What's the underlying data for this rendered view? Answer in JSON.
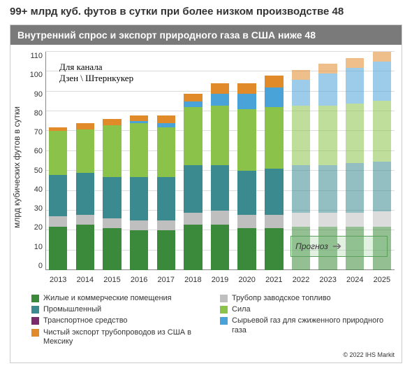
{
  "page_title": "99+ млрд куб. футов в сутки при более низком производстве 48",
  "chart": {
    "type": "stacked-bar",
    "title": "Внутренний спрос и экспорт природного газа в США ниже 48",
    "y_label": "млрд кубических футов в сутки",
    "ylim": [
      0,
      110
    ],
    "ytick_step": 10,
    "yticks": [
      0,
      10,
      20,
      30,
      40,
      50,
      60,
      70,
      80,
      90,
      100,
      110
    ],
    "categories": [
      "2013",
      "2014",
      "2015",
      "2016",
      "2017",
      "2018",
      "2019",
      "2020",
      "2021",
      "2022",
      "2023",
      "2024",
      "2025"
    ],
    "forecast_start_index": 9,
    "forecast_label": "Прогноз",
    "forecast_opacity": 0.55,
    "series": [
      {
        "key": "residential_commercial",
        "label": "Жилые и коммерческие помещения",
        "color": "#3b8a3b"
      },
      {
        "key": "industrial",
        "label": "Промышленный",
        "color": "#3a8a8f"
      },
      {
        "key": "transport",
        "label": "Транспортное средство",
        "color": "#7a2b6b"
      },
      {
        "key": "pipeline_export",
        "label": "Чистый экспорт трубопроводов из США в Мексику",
        "color": "#e08a2a"
      },
      {
        "key": "pipeline_fuel",
        "label": "Трубопр заводское топливо",
        "color": "#bfbfbf"
      },
      {
        "key": "power",
        "label": "Сила",
        "color": "#8ac24a"
      },
      {
        "key": "lng_feedgas",
        "label": "Сырьевой газ для сжиженного природного газа",
        "color": "#4aa3d8"
      }
    ],
    "stack_order": [
      "residential_commercial",
      "pipeline_fuel",
      "industrial",
      "transport",
      "power",
      "lng_feedgas",
      "pipeline_export"
    ],
    "data": {
      "residential_commercial": [
        22,
        23,
        21,
        20,
        20,
        23,
        23,
        21,
        21,
        22,
        22,
        22,
        22
      ],
      "pipeline_fuel": [
        5,
        5,
        5,
        5,
        5,
        6,
        7,
        7,
        7,
        7,
        7,
        7,
        8
      ],
      "industrial": [
        21,
        21,
        21,
        22,
        22,
        24,
        23,
        22,
        23,
        24,
        24,
        25,
        25
      ],
      "transport": [
        0,
        0,
        0,
        0,
        0,
        0,
        0,
        0,
        0,
        0,
        0,
        0,
        0
      ],
      "power": [
        22,
        22,
        26,
        27,
        25,
        29,
        30,
        31,
        31,
        30,
        30,
        30,
        31
      ],
      "lng_feedgas": [
        0,
        0,
        0,
        1,
        2,
        3,
        6,
        8,
        10,
        13,
        16,
        18,
        20
      ],
      "pipeline_export": [
        2,
        3,
        3,
        3,
        4,
        4,
        5,
        5,
        6,
        5,
        5,
        5,
        5
      ]
    },
    "background_color": "#ffffff",
    "grid_color": "#dddddd",
    "title_bg": "#7a7a7a",
    "title_color": "#ffffff",
    "title_fontsize": 14,
    "label_fontsize": 12,
    "tick_fontsize": 11
  },
  "watermark": {
    "line1": "Для канала",
    "line2": "Дзен \\ Штернкукер"
  },
  "copyright": "© 2022 IHS Markit"
}
